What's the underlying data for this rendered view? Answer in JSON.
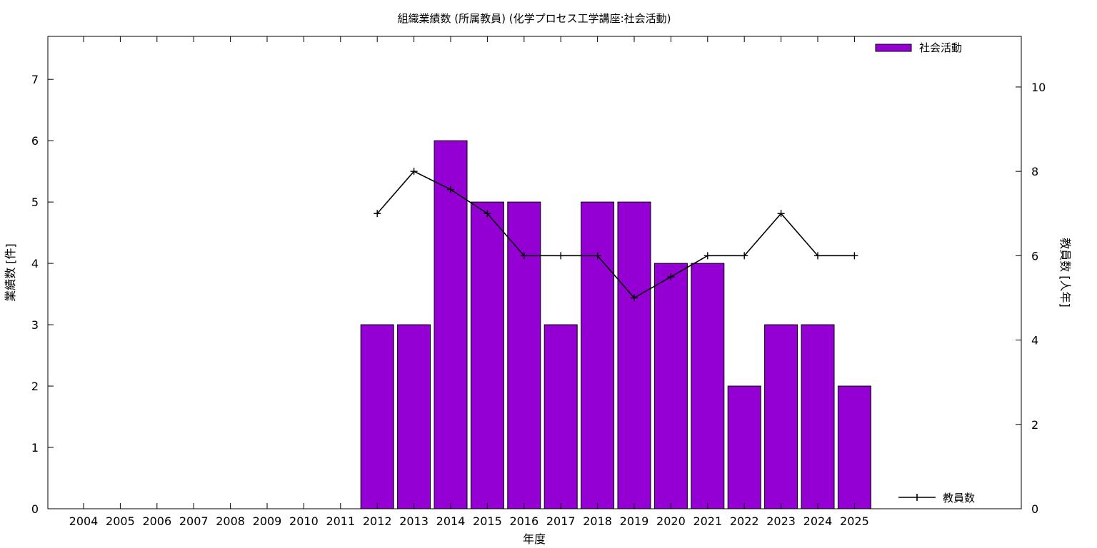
{
  "chart_data": {
    "type": "bar",
    "title": "組織業績数 (所属教員) (化学プロセス工学講座:社会活動)",
    "xlabel": "年度",
    "ylabel": "業績数 [件]",
    "y2label": "教員数 [人年]",
    "categories": [
      "2004",
      "2005",
      "2006",
      "2007",
      "2008",
      "2009",
      "2010",
      "2011",
      "2012",
      "2013",
      "2014",
      "2015",
      "2016",
      "2017",
      "2018",
      "2019",
      "2020",
      "2021",
      "2022",
      "2023",
      "2024",
      "2025"
    ],
    "ylim": [
      0,
      7.7
    ],
    "y2lim": [
      0,
      11.2
    ],
    "yticks": [
      0,
      1,
      2,
      3,
      4,
      5,
      6,
      7
    ],
    "y2ticks": [
      0,
      2,
      4,
      6,
      8,
      10
    ],
    "grid": false,
    "series": [
      {
        "name": "社会活動",
        "type": "bar",
        "axis": "left",
        "color": "#9400d3",
        "values": [
          null,
          null,
          null,
          null,
          null,
          null,
          null,
          null,
          3,
          3,
          6,
          5,
          5,
          3,
          5,
          5,
          4,
          4,
          2,
          3,
          3,
          2
        ]
      },
      {
        "name": "教員数",
        "type": "line",
        "axis": "right",
        "color": "#000000",
        "values": [
          null,
          null,
          null,
          null,
          null,
          null,
          null,
          null,
          7,
          8,
          7.57,
          7,
          6,
          6,
          6,
          5,
          5.5,
          6,
          6,
          7,
          6,
          6
        ]
      }
    ],
    "legend": {
      "bar_position": "top-right",
      "line_position": "bottom-right"
    }
  }
}
